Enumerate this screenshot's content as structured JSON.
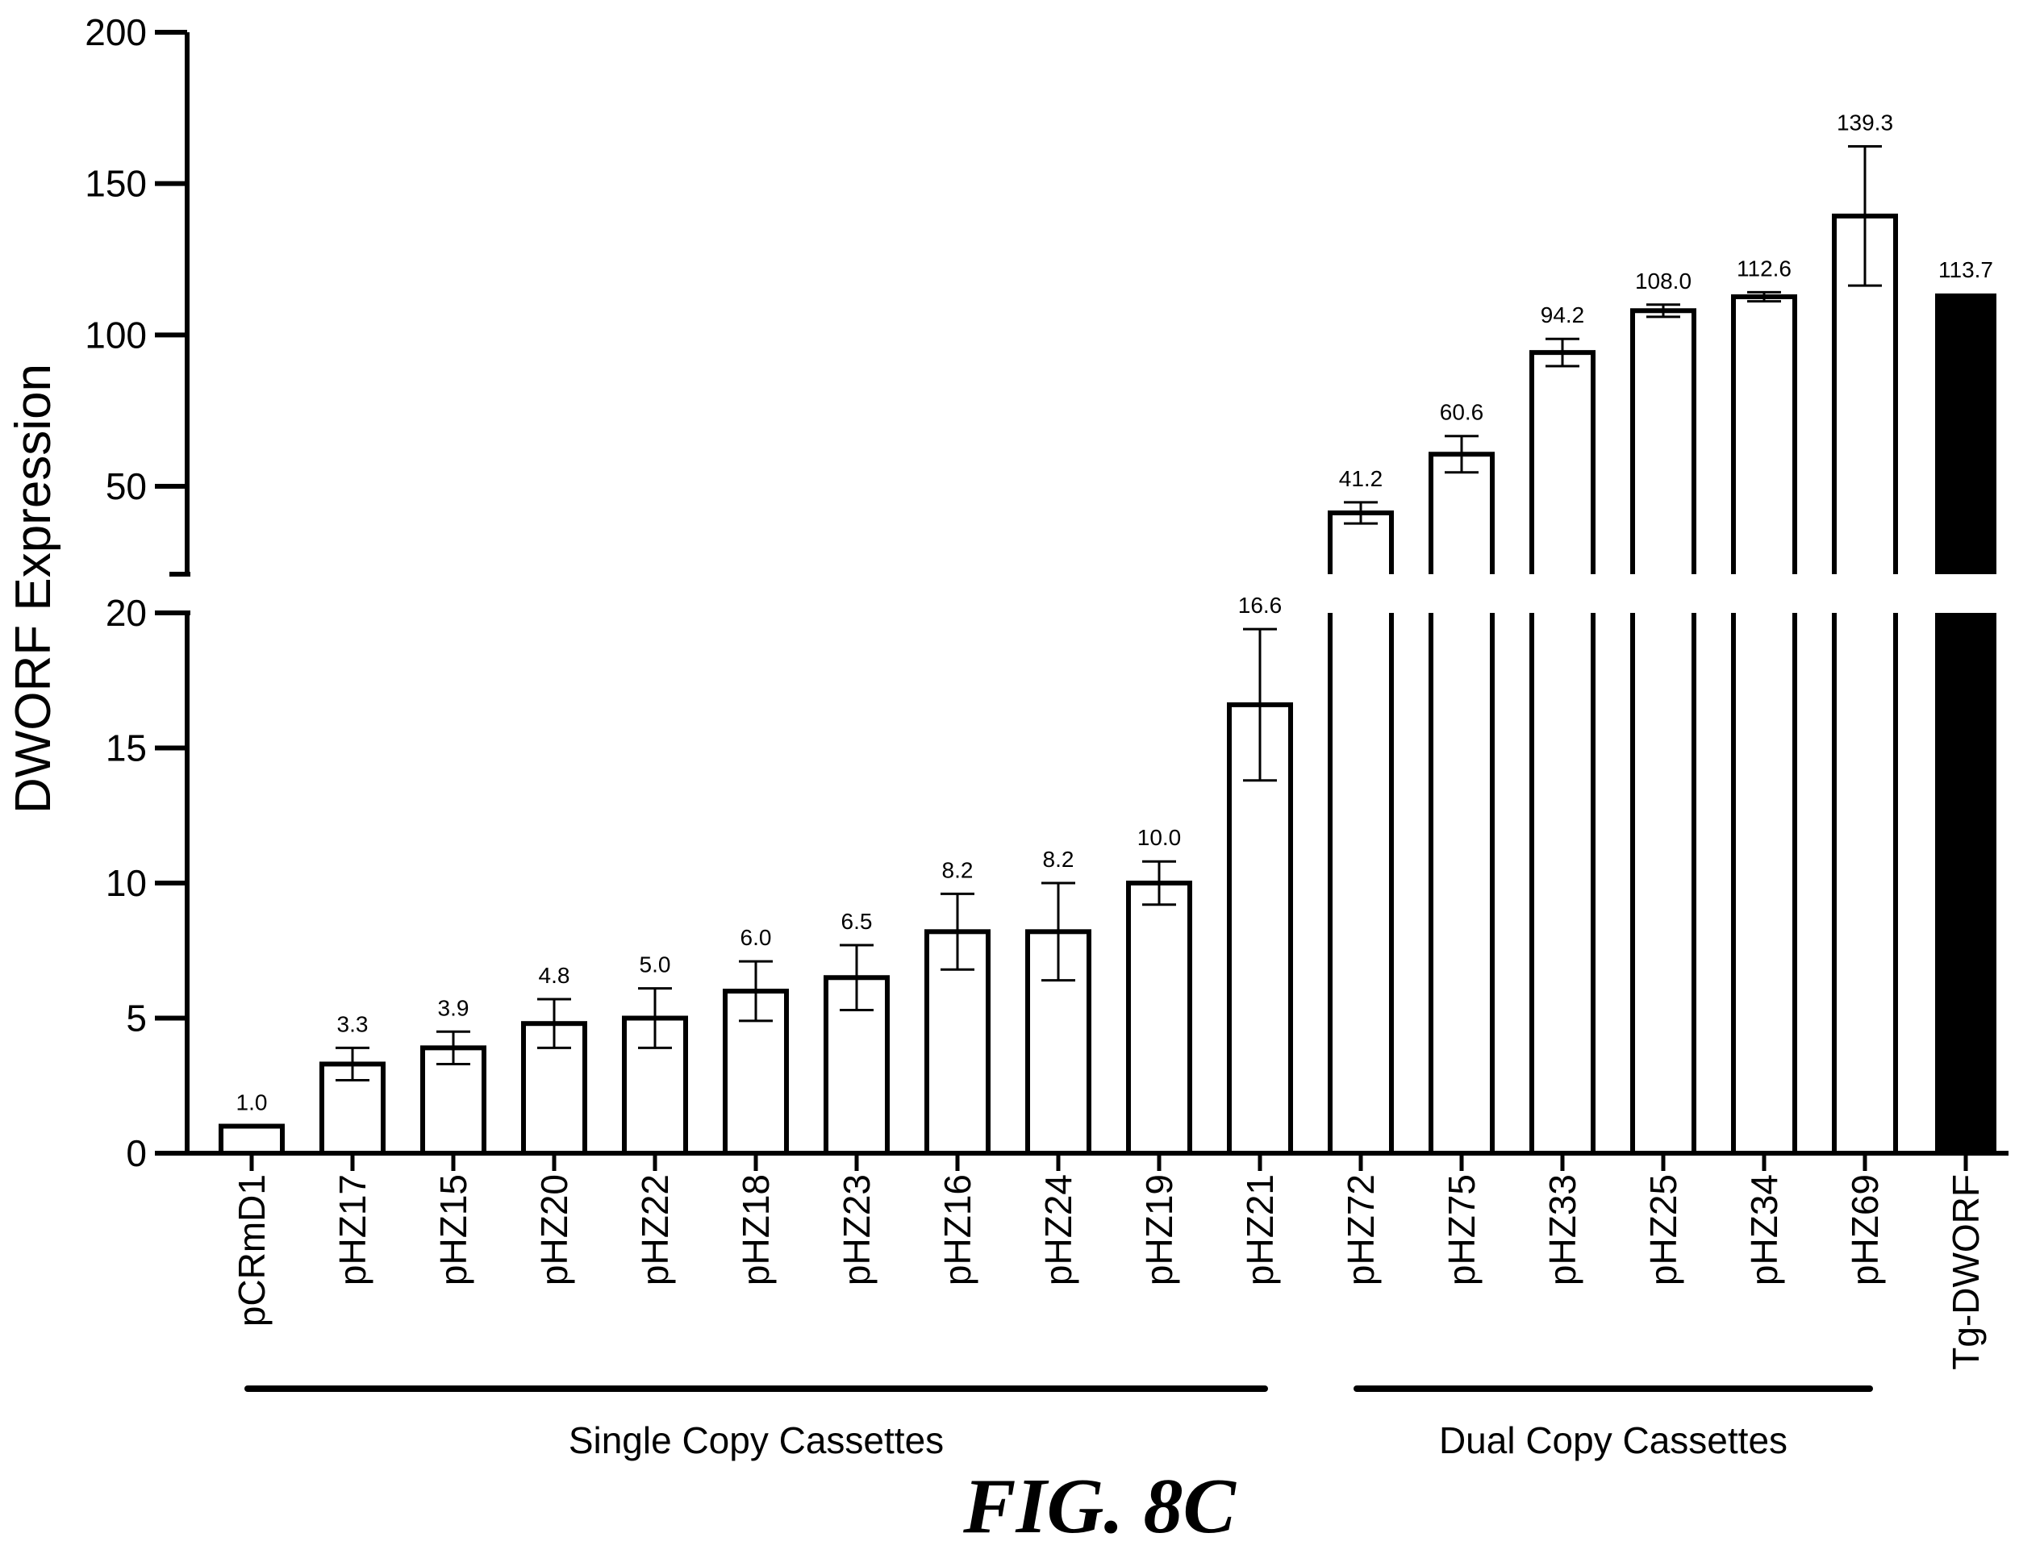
{
  "chart_data": {
    "type": "bar",
    "ylabel": "DWORF Expression",
    "figure_label": "FIG. 8C",
    "categories": [
      "pCRmD1",
      "pHZ17",
      "pHZ15",
      "pHZ20",
      "pHZ22",
      "pHZ18",
      "pHZ23",
      "pHZ16",
      "pHZ24",
      "pHZ19",
      "pHZ21",
      "pHZ72",
      "pHZ75",
      "pHZ33",
      "pHZ25",
      "pHZ34",
      "pHZ69",
      "Tg-DWORF"
    ],
    "series": [
      {
        "values": [
          1.0,
          3.3,
          3.9,
          4.8,
          5.0,
          6.0,
          6.5,
          8.2,
          8.2,
          10.0,
          16.6,
          41.2,
          60.6,
          94.2,
          108.0,
          112.6,
          139.3,
          113.7
        ],
        "error": [
          0,
          0.6,
          0.6,
          0.9,
          1.1,
          1.1,
          1.2,
          1.4,
          1.8,
          0.8,
          2.8,
          3.5,
          6.0,
          4.5,
          2.0,
          1.5,
          23.0,
          0
        ],
        "data_labels": [
          "1.0",
          "3.3",
          "3.9",
          "4.8",
          "5.0",
          "6.0",
          "6.5",
          "8.2",
          "8.2",
          "10.0",
          "16.6",
          "41.2",
          "60.6",
          "94.2",
          "108.0",
          "112.6",
          "139.3",
          "113.7"
        ],
        "fills": [
          "white",
          "white",
          "white",
          "white",
          "white",
          "white",
          "white",
          "white",
          "white",
          "white",
          "white",
          "white",
          "white",
          "white",
          "white",
          "white",
          "white",
          "black"
        ]
      }
    ],
    "y_axis": {
      "broken": true,
      "lower_segment": {
        "range": [
          0,
          20
        ],
        "ticks": [
          "0",
          "5",
          "10",
          "15",
          "20"
        ]
      },
      "upper_segment": {
        "range": [
          20,
          200
        ],
        "ticks": [
          "50",
          "100",
          "150",
          "200"
        ]
      }
    },
    "groups": [
      {
        "label": "Single Copy Cassettes",
        "from": "pCRmD1",
        "to": "pHZ21"
      },
      {
        "label": "Dual Copy Cassettes",
        "from": "pHZ72",
        "to": "pHZ69"
      }
    ],
    "colors": {
      "bar_stroke": "#000000",
      "bar_fill_white": "#ffffff",
      "bar_fill_black": "#000000"
    },
    "grid": false
  }
}
